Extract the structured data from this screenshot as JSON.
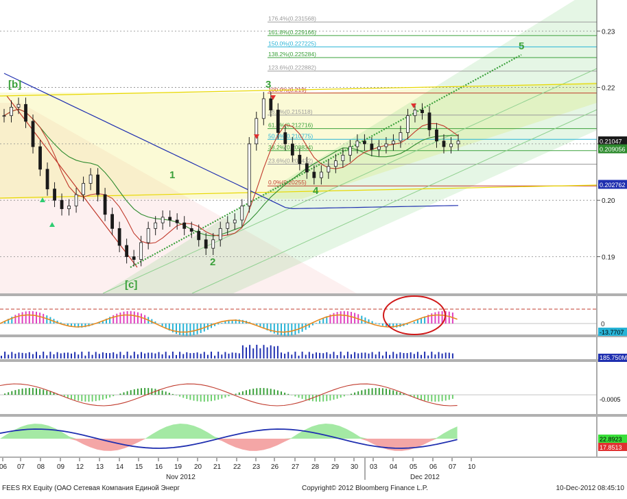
{
  "colors": {
    "up_candle": "#1a1a1a",
    "ma_blue": "#1f2fb0",
    "ma_red": "#c0392b",
    "ma_green": "#2e8b2e",
    "fib_red": "#c0392b",
    "fib_green": "#3aa03a",
    "fib_cyan": "#27b3d6",
    "fib_gray": "#9a9a9a",
    "hist_cyan": "#27b3d6",
    "hist_magenta": "#e040c0",
    "oscillator_orange": "#e68a1e",
    "volume_blue": "#1f2fb0",
    "channel_green": "#6fcf6f",
    "yellow_band": "#f2ec6a"
  },
  "chart_data": {
    "type": "line",
    "title": "",
    "xlabel": "",
    "ylabel": "",
    "ylim": [
      0.1835,
      0.2355
    ],
    "y_ticks": [
      "0.23",
      "0.22",
      "0.21",
      "0.20",
      "0.19"
    ],
    "x_ticks": [
      "06",
      "07",
      "08",
      "09",
      "12",
      "13",
      "14",
      "15",
      "16",
      "19",
      "20",
      "21",
      "22",
      "23",
      "26",
      "27",
      "28",
      "29",
      "30",
      "03",
      "04",
      "05",
      "06",
      "07",
      "10"
    ],
    "month_labels": [
      "Nov 2012",
      "Dec 2012"
    ],
    "price_close": [
      0.215,
      0.2165,
      0.217,
      0.214,
      0.2095,
      0.2055,
      0.202,
      0.2,
      0.1985,
      0.199,
      0.201,
      0.203,
      0.2045,
      0.201,
      0.1975,
      0.195,
      0.192,
      0.19,
      0.1895,
      0.1925,
      0.195,
      0.196,
      0.197,
      0.1965,
      0.196,
      0.195,
      0.1945,
      0.193,
      0.1915,
      0.193,
      0.195,
      0.196,
      0.1965,
      0.199,
      0.21,
      0.2145,
      0.218,
      0.216,
      0.212,
      0.21,
      0.208,
      0.2065,
      0.205,
      0.204,
      0.205,
      0.206,
      0.207,
      0.208,
      0.2095,
      0.2105,
      0.21,
      0.209,
      0.2095,
      0.21,
      0.2105,
      0.212,
      0.215,
      0.216,
      0.2155,
      0.2125,
      0.2105,
      0.2095,
      0.21,
      0.2105
    ],
    "last_values": {
      "price": "0.21047",
      "ma_green": "0.209056",
      "ma_blue": "0.202762"
    },
    "fibonacci": [
      {
        "label": "176.4%(0.231568)",
        "value": 0.2316,
        "color": "fib_gray"
      },
      {
        "label": "161.8%(0.229166)",
        "value": 0.2292,
        "color": "fib_green"
      },
      {
        "label": "150.0%(0.227225)",
        "value": 0.2272,
        "color": "fib_cyan"
      },
      {
        "label": "138.2%(0.225284)",
        "value": 0.2253,
        "color": "fib_green"
      },
      {
        "label": "123.6%(0.222882)",
        "value": 0.2229,
        "color": "fib_gray"
      },
      {
        "label": "100.0%(0.219)",
        "value": 0.219,
        "color": "fib_red"
      },
      {
        "label": "76.4%(0.215118)",
        "value": 0.2151,
        "color": "fib_gray"
      },
      {
        "label": "61.8%(0.212716)",
        "value": 0.2127,
        "color": "fib_green"
      },
      {
        "label": "50.0%(0.210775)",
        "value": 0.2108,
        "color": "fib_cyan"
      },
      {
        "label": "38.2%(0.208834)",
        "value": 0.2088,
        "color": "fib_green"
      },
      {
        "label": "23.6%(0.206432)",
        "value": 0.2064,
        "color": "fib_gray"
      },
      {
        "label": "0.0%(0.20255)",
        "value": 0.20255,
        "color": "fib_red"
      }
    ],
    "wave_labels": [
      "[b]",
      "[c]",
      "1",
      "2",
      "3",
      "4",
      "5"
    ],
    "panels": [
      {
        "name": "oscillator",
        "last_label": "0",
        "last_value": "-13.7707"
      },
      {
        "name": "volume",
        "last_value": "185.750M"
      },
      {
        "name": "macd",
        "last_value": "-0.0005"
      },
      {
        "name": "dmi",
        "last_values": [
          "22.8923",
          "17.8513"
        ]
      }
    ]
  },
  "footer": {
    "left": "FEES RX Equity (ОАО Сетевая Компания Единой Энерг",
    "center": "Copyright© 2012 Bloomberg Finance L.P.",
    "right": "10-Dec-2012 08:45:10"
  }
}
